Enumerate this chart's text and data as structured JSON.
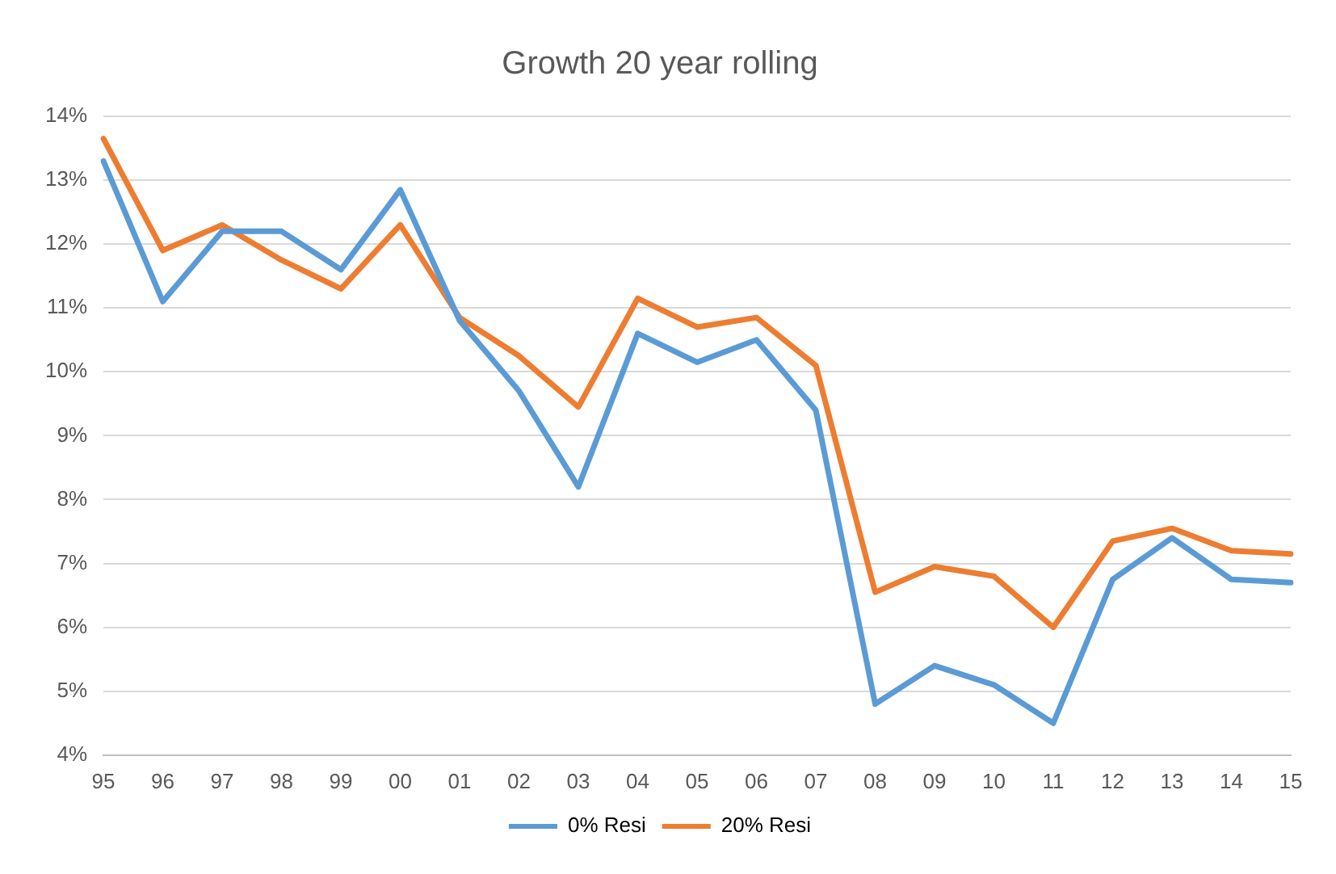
{
  "chart_data": {
    "type": "line",
    "title": "Growth 20 year rolling",
    "categories": [
      "95",
      "96",
      "97",
      "98",
      "99",
      "00",
      "01",
      "02",
      "03",
      "04",
      "05",
      "06",
      "07",
      "08",
      "09",
      "10",
      "11",
      "12",
      "13",
      "14",
      "15"
    ],
    "series": [
      {
        "name": "0% Resi",
        "color": "#5b9bd5",
        "values": [
          13.3,
          11.1,
          12.2,
          12.2,
          11.6,
          12.85,
          10.8,
          9.7,
          8.2,
          10.6,
          10.15,
          10.5,
          9.4,
          4.8,
          5.4,
          5.1,
          4.5,
          6.75,
          7.4,
          6.75,
          6.7
        ]
      },
      {
        "name": "20% Resi",
        "color": "#ed7d31",
        "values": [
          13.65,
          11.9,
          12.3,
          11.75,
          11.3,
          12.3,
          10.85,
          10.25,
          9.45,
          11.15,
          10.7,
          10.85,
          10.1,
          6.55,
          6.95,
          6.8,
          6.0,
          7.35,
          7.55,
          7.2,
          7.15
        ]
      }
    ],
    "ylim": [
      4,
      14
    ],
    "yticks": [
      {
        "value": 4,
        "label": "4%"
      },
      {
        "value": 5,
        "label": "5%"
      },
      {
        "value": 6,
        "label": "6%"
      },
      {
        "value": 7,
        "label": "7%"
      },
      {
        "value": 8,
        "label": "8%"
      },
      {
        "value": 9,
        "label": "9%"
      },
      {
        "value": 10,
        "label": "10%"
      },
      {
        "value": 11,
        "label": "11%"
      },
      {
        "value": 12,
        "label": "12%"
      },
      {
        "value": 13,
        "label": "13%"
      },
      {
        "value": 14,
        "label": "14%"
      }
    ],
    "grid": "y",
    "legend": "bottom",
    "marker": "none",
    "line_style": "solid"
  }
}
